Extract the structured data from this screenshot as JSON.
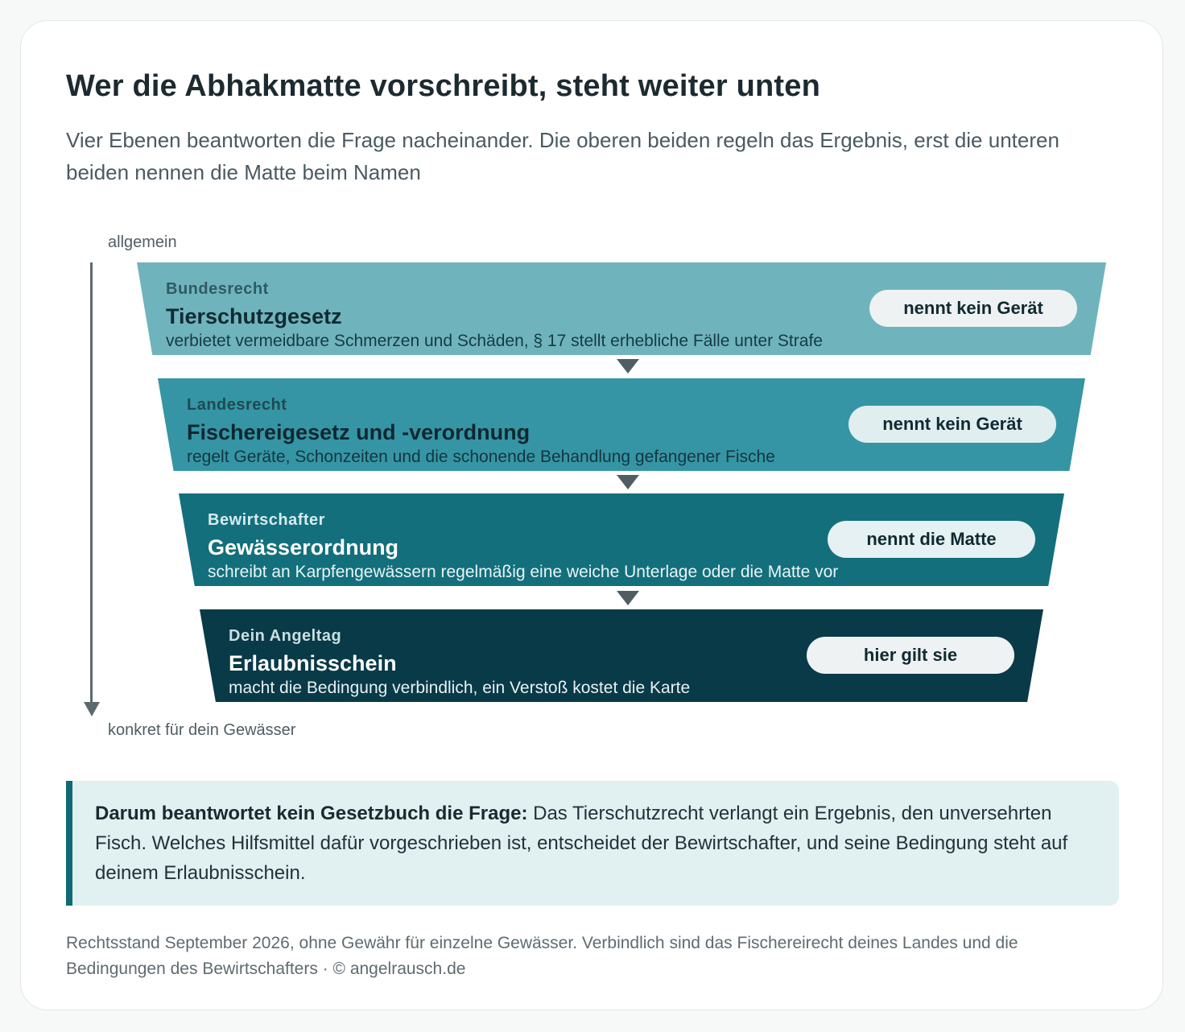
{
  "header": {
    "title": "Wer die Abhakmatte vorschreibt, steht weiter unten",
    "subtitle": "Vier Ebenen beantworten die Frage nacheinander. Die oberen beiden regeln das Ergebnis, erst die unteren beiden nennen die Matte beim Namen"
  },
  "axis": {
    "top_label": "allgemein",
    "bottom_label": "konkret für dein Gewässer"
  },
  "levels": [
    {
      "label": "Bundesrecht",
      "name": "Tierschutzgesetz",
      "description": "verbietet vermeidbare Schmerzen und Schäden, § 17 stellt erhebliche Fälle unter Strafe",
      "pill": "nennt kein Gerät",
      "color": "#6fb4bd"
    },
    {
      "label": "Landesrecht",
      "name": "Fischereigesetz und -verordnung",
      "description": "regelt Geräte, Schonzeiten und die schonende Behandlung gefangener Fische",
      "pill": "nennt kein Gerät",
      "color": "#3695a4"
    },
    {
      "label": "Bewirtschafter",
      "name": "Gewässerordnung",
      "description": "schreibt an Karpfengewässern regelmäßig eine weiche Unterlage oder die Matte vor",
      "pill": "nennt die Matte",
      "color": "#136f7c"
    },
    {
      "label": "Dein Angeltag",
      "name": "Erlaubnisschein",
      "description": "macht die Bedingung verbindlich, ein Verstoß kostet die Karte",
      "pill": "hier gilt sie",
      "color": "#083a47"
    }
  ],
  "callout": {
    "lead": "Darum beantwortet kein Gesetzbuch die Frage:",
    "text": " Das Tierschutzrecht verlangt ein Ergebnis, den unversehrten Fisch. Welches Hilfsmittel dafür vorgeschrieben ist, entscheidet der Bewirtschafter, und seine Bedingung steht auf deinem Erlaubnisschein."
  },
  "footer": {
    "text": "Rechtsstand September 2026, ohne Gewähr für einzelne Gewässer. Verbindlich sind das Fischereirecht deines Landes und die Bedingungen des Bewirtschafters · © angelrausch.de"
  }
}
